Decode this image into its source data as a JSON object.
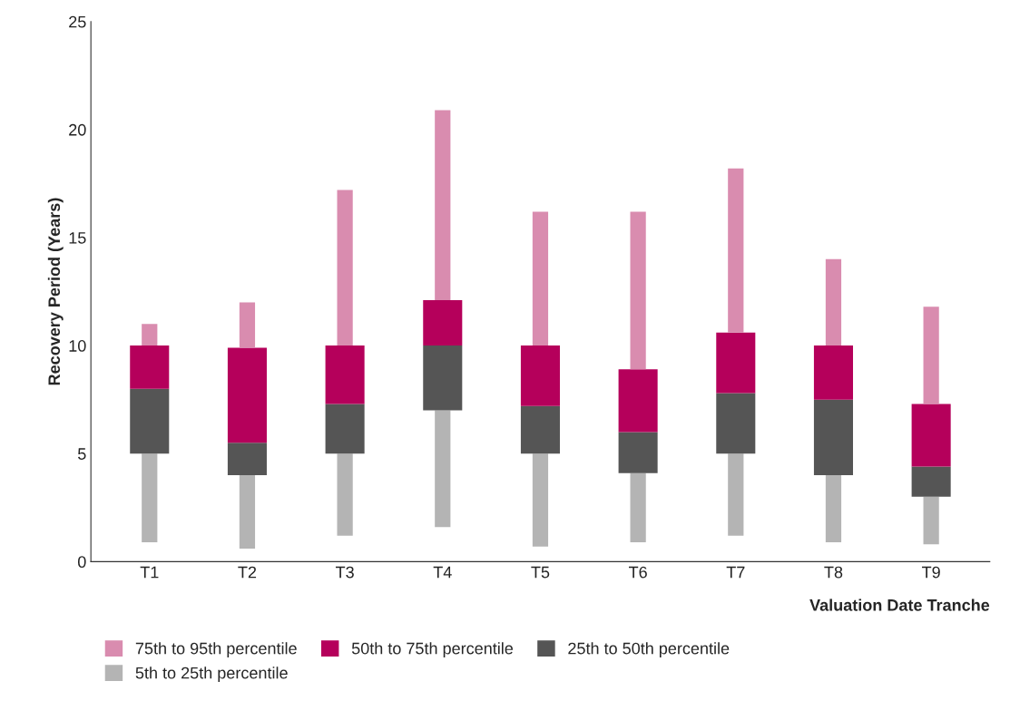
{
  "chart_data": {
    "type": "bar",
    "xlabel": "Valuation Date Tranche",
    "ylabel": "Recovery Period (Years)",
    "categories": [
      "T1",
      "T2",
      "T3",
      "T4",
      "T5",
      "T6",
      "T7",
      "T8",
      "T9"
    ],
    "series": [
      {
        "name": "5th to 25th percentile",
        "color": "#b4b4b4",
        "base": [
          0.9,
          0.6,
          1.2,
          1.6,
          0.7,
          0.9,
          1.2,
          0.9,
          0.8
        ],
        "values": [
          4.1,
          3.4,
          3.8,
          5.4,
          4.3,
          3.2,
          3.8,
          3.1,
          2.2
        ]
      },
      {
        "name": "25th to 50th percentile",
        "color": "#555555",
        "base": [
          5,
          4,
          5,
          7,
          5,
          4.1,
          5,
          4,
          3
        ],
        "values": [
          3,
          1.5,
          2.3,
          3,
          2.2,
          1.9,
          2.8,
          3.5,
          1.4
        ]
      },
      {
        "name": "50th to 75th percentile",
        "color": "#b5005b",
        "base": [
          8,
          5.5,
          7.3,
          10,
          7.2,
          6,
          7.8,
          7.5,
          4.4
        ],
        "values": [
          2,
          4.4,
          2.7,
          2.1,
          2.8,
          2.9,
          2.8,
          2.5,
          2.9
        ]
      },
      {
        "name": "75th to 95th percentile",
        "color": "#d98caf",
        "base": [
          10,
          9.9,
          10,
          12.1,
          10,
          8.9,
          10.6,
          10,
          7.3
        ],
        "values": [
          1,
          2.1,
          7.2,
          8.8,
          6.2,
          7.3,
          7.6,
          4,
          4.5
        ]
      }
    ],
    "ylim": [
      0,
      25
    ],
    "yticks": [
      0,
      5,
      10,
      15,
      20,
      25
    ],
    "grid": false,
    "legend": "bottom"
  }
}
